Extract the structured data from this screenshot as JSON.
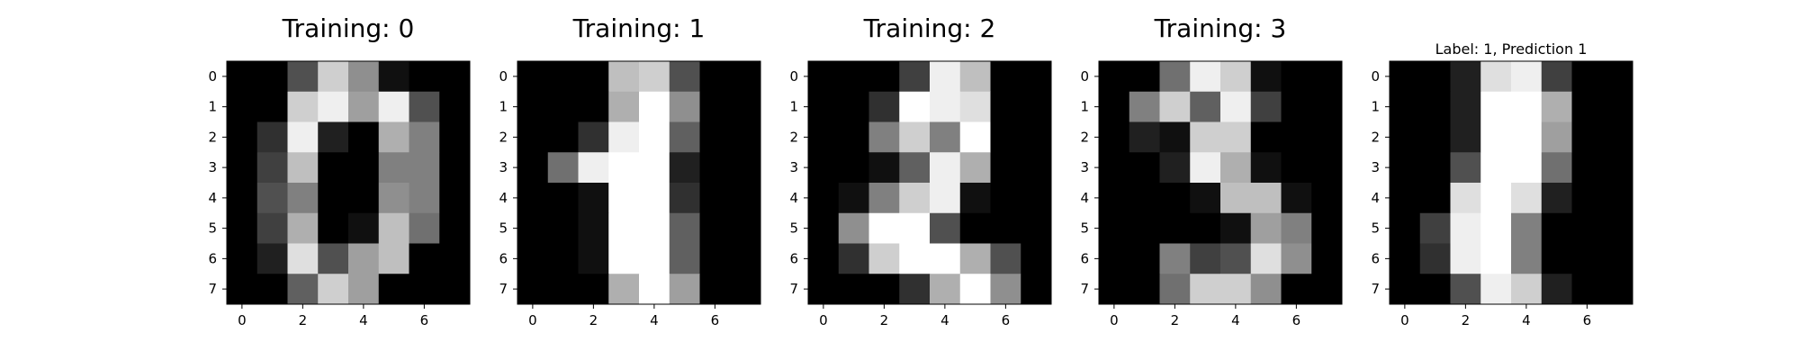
{
  "chart_data": [
    {
      "type": "heatmap",
      "title": "Training: 0",
      "colormap": "gray_r",
      "xticks": [
        0,
        2,
        4,
        6
      ],
      "yticks": [
        0,
        1,
        2,
        3,
        4,
        5,
        6,
        7
      ],
      "values": [
        [
          0,
          0,
          5,
          13,
          9,
          1,
          0,
          0
        ],
        [
          0,
          0,
          13,
          15,
          10,
          15,
          5,
          0
        ],
        [
          0,
          3,
          15,
          2,
          0,
          11,
          8,
          0
        ],
        [
          0,
          4,
          12,
          0,
          0,
          8,
          8,
          0
        ],
        [
          0,
          5,
          8,
          0,
          0,
          9,
          8,
          0
        ],
        [
          0,
          4,
          11,
          0,
          1,
          12,
          7,
          0
        ],
        [
          0,
          2,
          14,
          5,
          10,
          12,
          0,
          0
        ],
        [
          0,
          0,
          6,
          13,
          10,
          0,
          0,
          0
        ]
      ]
    },
    {
      "type": "heatmap",
      "title": "Training: 1",
      "colormap": "gray_r",
      "xticks": [
        0,
        2,
        4,
        6
      ],
      "yticks": [
        0,
        1,
        2,
        3,
        4,
        5,
        6,
        7
      ],
      "values": [
        [
          0,
          0,
          0,
          12,
          13,
          5,
          0,
          0
        ],
        [
          0,
          0,
          0,
          11,
          16,
          9,
          0,
          0
        ],
        [
          0,
          0,
          3,
          15,
          16,
          6,
          0,
          0
        ],
        [
          0,
          7,
          15,
          16,
          16,
          2,
          0,
          0
        ],
        [
          0,
          0,
          1,
          16,
          16,
          3,
          0,
          0
        ],
        [
          0,
          0,
          1,
          16,
          16,
          6,
          0,
          0
        ],
        [
          0,
          0,
          1,
          16,
          16,
          6,
          0,
          0
        ],
        [
          0,
          0,
          0,
          11,
          16,
          10,
          0,
          0
        ]
      ]
    },
    {
      "type": "heatmap",
      "title": "Training: 2",
      "colormap": "gray_r",
      "xticks": [
        0,
        2,
        4,
        6
      ],
      "yticks": [
        0,
        1,
        2,
        3,
        4,
        5,
        6,
        7
      ],
      "values": [
        [
          0,
          0,
          0,
          4,
          15,
          12,
          0,
          0
        ],
        [
          0,
          0,
          3,
          16,
          15,
          14,
          0,
          0
        ],
        [
          0,
          0,
          8,
          13,
          8,
          16,
          0,
          0
        ],
        [
          0,
          0,
          1,
          6,
          15,
          11,
          0,
          0
        ],
        [
          0,
          1,
          8,
          13,
          15,
          1,
          0,
          0
        ],
        [
          0,
          9,
          16,
          16,
          5,
          0,
          0,
          0
        ],
        [
          0,
          3,
          13,
          16,
          16,
          11,
          5,
          0
        ],
        [
          0,
          0,
          0,
          3,
          11,
          16,
          9,
          0
        ]
      ]
    },
    {
      "type": "heatmap",
      "title": "Training: 3",
      "colormap": "gray_r",
      "xticks": [
        0,
        2,
        4,
        6
      ],
      "yticks": [
        0,
        1,
        2,
        3,
        4,
        5,
        6,
        7
      ],
      "values": [
        [
          0,
          0,
          7,
          15,
          13,
          1,
          0,
          0
        ],
        [
          0,
          8,
          13,
          6,
          15,
          4,
          0,
          0
        ],
        [
          0,
          2,
          1,
          13,
          13,
          0,
          0,
          0
        ],
        [
          0,
          0,
          2,
          15,
          11,
          1,
          0,
          0
        ],
        [
          0,
          0,
          0,
          1,
          12,
          12,
          1,
          0
        ],
        [
          0,
          0,
          0,
          0,
          1,
          10,
          8,
          0
        ],
        [
          0,
          0,
          8,
          4,
          5,
          14,
          9,
          0
        ],
        [
          0,
          0,
          7,
          13,
          13,
          9,
          0,
          0
        ]
      ]
    },
    {
      "type": "heatmap",
      "title": "Label: 1, Prediction 1",
      "colormap": "gray_r",
      "xticks": [
        0,
        2,
        4,
        6
      ],
      "yticks": [
        0,
        1,
        2,
        3,
        4,
        5,
        6,
        7
      ],
      "values": [
        [
          0,
          0,
          2,
          14,
          15,
          4,
          0,
          0
        ],
        [
          0,
          0,
          2,
          16,
          16,
          11,
          0,
          0
        ],
        [
          0,
          0,
          2,
          16,
          16,
          10,
          0,
          0
        ],
        [
          0,
          0,
          5,
          16,
          16,
          7,
          0,
          0
        ],
        [
          0,
          0,
          14,
          16,
          14,
          2,
          0,
          0
        ],
        [
          0,
          4,
          15,
          16,
          8,
          0,
          0,
          0
        ],
        [
          0,
          3,
          15,
          16,
          8,
          0,
          0,
          0
        ],
        [
          0,
          0,
          5,
          15,
          13,
          2,
          0,
          0
        ]
      ]
    }
  ]
}
